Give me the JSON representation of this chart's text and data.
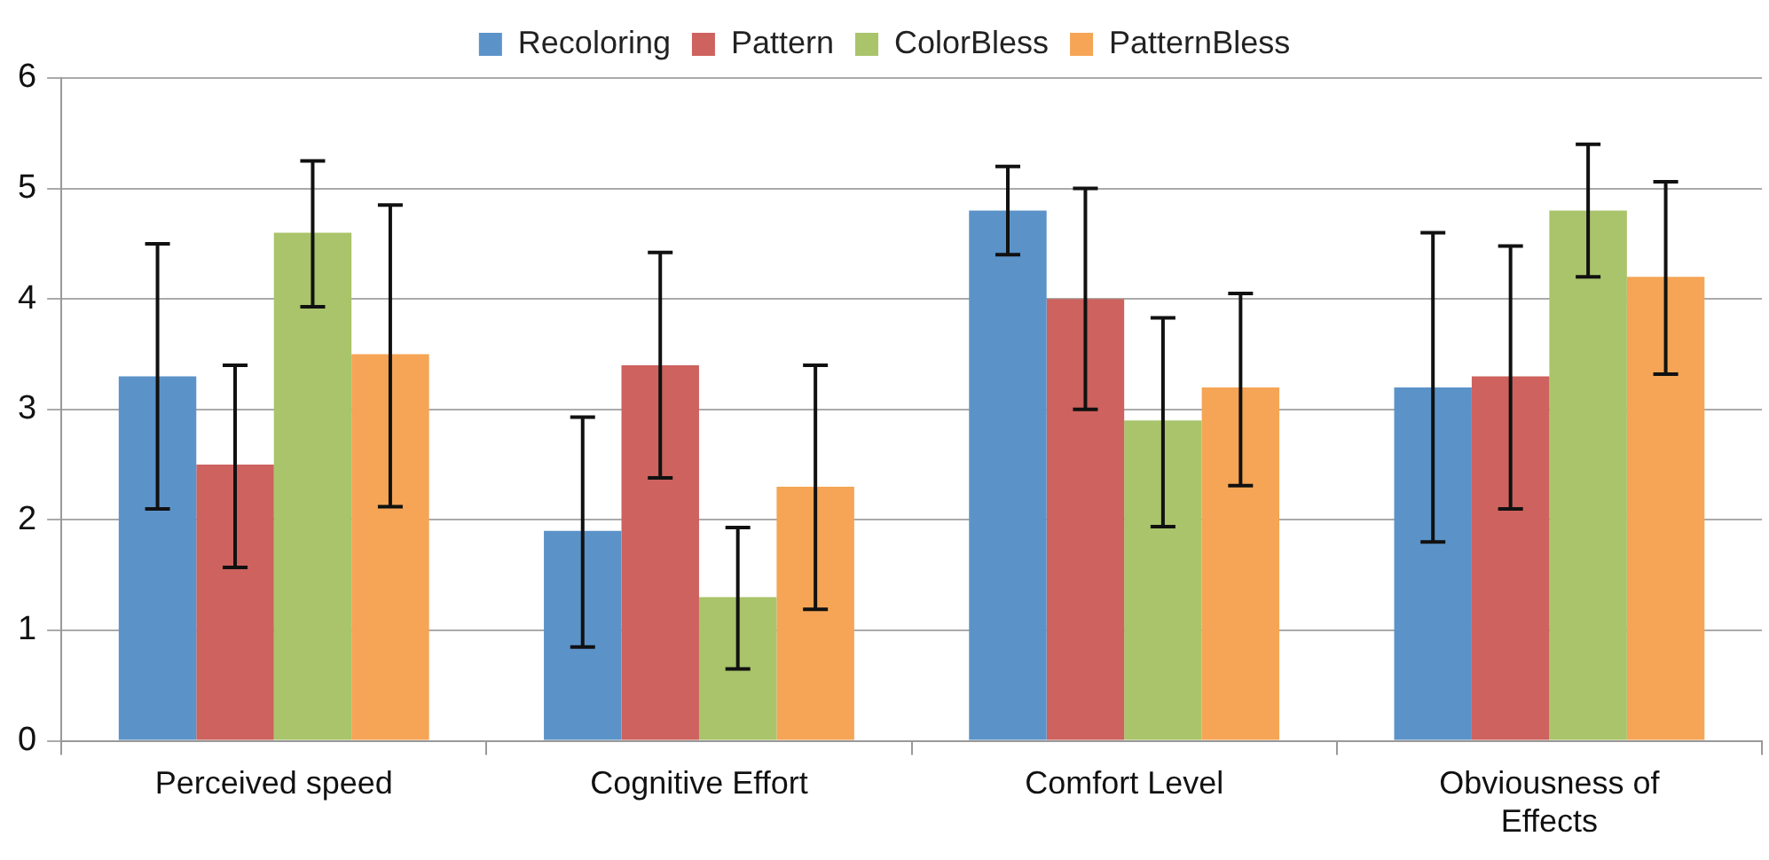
{
  "chart_data": {
    "type": "bar",
    "categories": [
      "Perceived speed",
      "Cognitive Effort",
      "Comfort Level",
      "Obviousness of Effects"
    ],
    "series": [
      {
        "name": "Recoloring",
        "color": "#5b93c9",
        "values": [
          3.3,
          1.9,
          4.8,
          3.2
        ],
        "errors": [
          [
            2.1,
            4.5
          ],
          [
            0.85,
            2.93
          ],
          [
            4.4,
            5.2
          ],
          [
            1.8,
            4.6
          ]
        ]
      },
      {
        "name": "Pattern",
        "color": "#cd625e",
        "values": [
          2.5,
          3.4,
          4.0,
          3.3
        ],
        "errors": [
          [
            1.57,
            3.4
          ],
          [
            2.38,
            4.42
          ],
          [
            3.0,
            5.0
          ],
          [
            2.1,
            4.48
          ]
        ]
      },
      {
        "name": "ColorBless",
        "color": "#a9c46a",
        "values": [
          4.6,
          1.3,
          2.9,
          4.8
        ],
        "errors": [
          [
            3.93,
            5.25
          ],
          [
            0.65,
            1.93
          ],
          [
            1.94,
            3.83
          ],
          [
            4.2,
            5.4
          ]
        ]
      },
      {
        "name": "PatternBless",
        "color": "#f5a555",
        "values": [
          3.5,
          2.3,
          3.2,
          4.2
        ],
        "errors": [
          [
            2.12,
            4.85
          ],
          [
            1.19,
            3.4
          ],
          [
            2.31,
            4.05
          ],
          [
            3.32,
            5.06
          ]
        ]
      }
    ],
    "ylim": [
      0,
      6
    ],
    "yticks": [
      0,
      1,
      2,
      3,
      4,
      5,
      6
    ],
    "grid": "y",
    "legend": "top"
  }
}
